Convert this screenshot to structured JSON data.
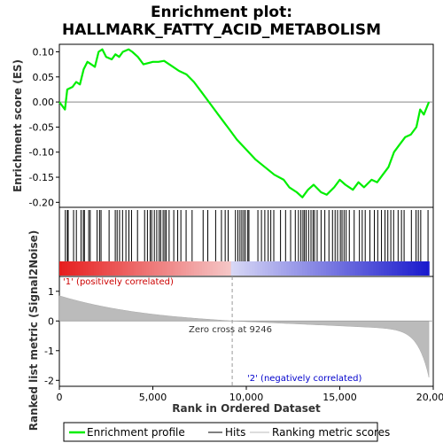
{
  "chart_data": {
    "type": "line",
    "title_line1": "Enrichment plot:",
    "title_line2": "HALLMARK_FATTY_ACID_METABOLISM",
    "ylabel_top": "Enrichment score (ES)",
    "ylabel_bottom": "Ranked list metric (Signal2Noise)",
    "xlabel": "Rank in Ordered Dataset",
    "x_ticks": [
      0,
      5000,
      10000,
      15000,
      20000
    ],
    "x_tick_labels": [
      "0",
      "5,000",
      "10,000",
      "15,000",
      "20,000"
    ],
    "xlim": [
      0,
      20000
    ],
    "es_ylim": [
      -0.21,
      0.115
    ],
    "es_y_ticks": [
      0.1,
      0.05,
      0.0,
      -0.05,
      -0.1,
      -0.15,
      -0.2
    ],
    "es_y_tick_labels": [
      "0.10",
      "0.05",
      "0.00",
      "-0.05",
      "-0.10",
      "-0.15",
      "-0.20"
    ],
    "metric_ylim": [
      -2.2,
      1.5
    ],
    "metric_y_ticks": [
      1,
      0,
      -1,
      -2
    ],
    "metric_y_tick_labels": [
      "1",
      "0",
      "-1",
      "-2"
    ],
    "zero_cross_rank": 9246,
    "zero_cross_label": "Zero cross at 9246",
    "pos_label": "'1' (positively correlated)",
    "neg_label": "'2' (negatively correlated)",
    "n_genes": 19770,
    "series": [
      {
        "name": "Enrichment profile",
        "color": "#00ee00",
        "x": [
          0,
          300,
          420,
          700,
          900,
          1100,
          1300,
          1500,
          1700,
          1900,
          2100,
          2300,
          2500,
          2800,
          3000,
          3200,
          3400,
          3700,
          3900,
          4200,
          4500,
          4800,
          5000,
          5300,
          5600,
          6000,
          6400,
          6800,
          7200,
          7600,
          8000,
          8500,
          9000,
          9500,
          10000,
          10500,
          11000,
          11500,
          12000,
          12300,
          12700,
          13000,
          13300,
          13600,
          14000,
          14300,
          14700,
          15000,
          15300,
          15700,
          16000,
          16300,
          16700,
          17000,
          17300,
          17600,
          17900,
          18200,
          18500,
          18800,
          19100,
          19300,
          19500,
          19770
        ],
        "y": [
          0.0,
          -0.015,
          0.025,
          0.03,
          0.04,
          0.035,
          0.065,
          0.08,
          0.075,
          0.07,
          0.1,
          0.105,
          0.09,
          0.085,
          0.095,
          0.09,
          0.1,
          0.105,
          0.1,
          0.09,
          0.075,
          0.078,
          0.08,
          0.08,
          0.082,
          0.072,
          0.062,
          0.055,
          0.04,
          0.02,
          0.0,
          -0.025,
          -0.05,
          -0.075,
          -0.095,
          -0.115,
          -0.13,
          -0.145,
          -0.155,
          -0.17,
          -0.18,
          -0.19,
          -0.175,
          -0.165,
          -0.18,
          -0.185,
          -0.17,
          -0.155,
          -0.165,
          -0.175,
          -0.16,
          -0.17,
          -0.155,
          -0.16,
          -0.145,
          -0.13,
          -0.1,
          -0.085,
          -0.07,
          -0.065,
          -0.05,
          -0.015,
          -0.025,
          0.0
        ]
      },
      {
        "name": "Hits",
        "color": "#000000",
        "x": [
          320,
          430,
          470,
          760,
          910,
          1160,
          1280,
          1340,
          1570,
          1650,
          2020,
          2150,
          2230,
          2660,
          2990,
          3090,
          3220,
          3380,
          3560,
          3720,
          3860,
          4180,
          4560,
          4710,
          4860,
          4940,
          5080,
          5210,
          5340,
          5420,
          5550,
          5640,
          5720,
          5870,
          6120,
          6330,
          6500,
          6780,
          7100,
          7690,
          7940,
          8360,
          8670,
          8870,
          9030,
          9420,
          9550,
          9660,
          9760,
          9860,
          9950,
          10080,
          10140,
          10620,
          10810,
          10990,
          11170,
          11310,
          11470,
          11830,
          12100,
          12370,
          12620,
          12790,
          12920,
          13030,
          13110,
          13200,
          13330,
          13460,
          13570,
          13650,
          13790,
          14000,
          14200,
          14420,
          14610,
          14750,
          14880,
          15030,
          15120,
          15230,
          15340,
          15510,
          15770,
          16050,
          16200,
          16360,
          16610,
          16850,
          17030,
          17230,
          17420,
          17570,
          17730,
          17880,
          18120,
          18300,
          18440,
          18830,
          19080,
          19200,
          19330,
          19720
        ]
      }
    ]
  },
  "legend": {
    "entries": [
      {
        "label": "Enrichment profile",
        "color": "#00ee00",
        "kind": "line"
      },
      {
        "label": "Hits",
        "color": "#000000",
        "kind": "line"
      },
      {
        "label": "Ranking metric scores",
        "color": "#bbbbbb",
        "kind": "line"
      }
    ]
  }
}
